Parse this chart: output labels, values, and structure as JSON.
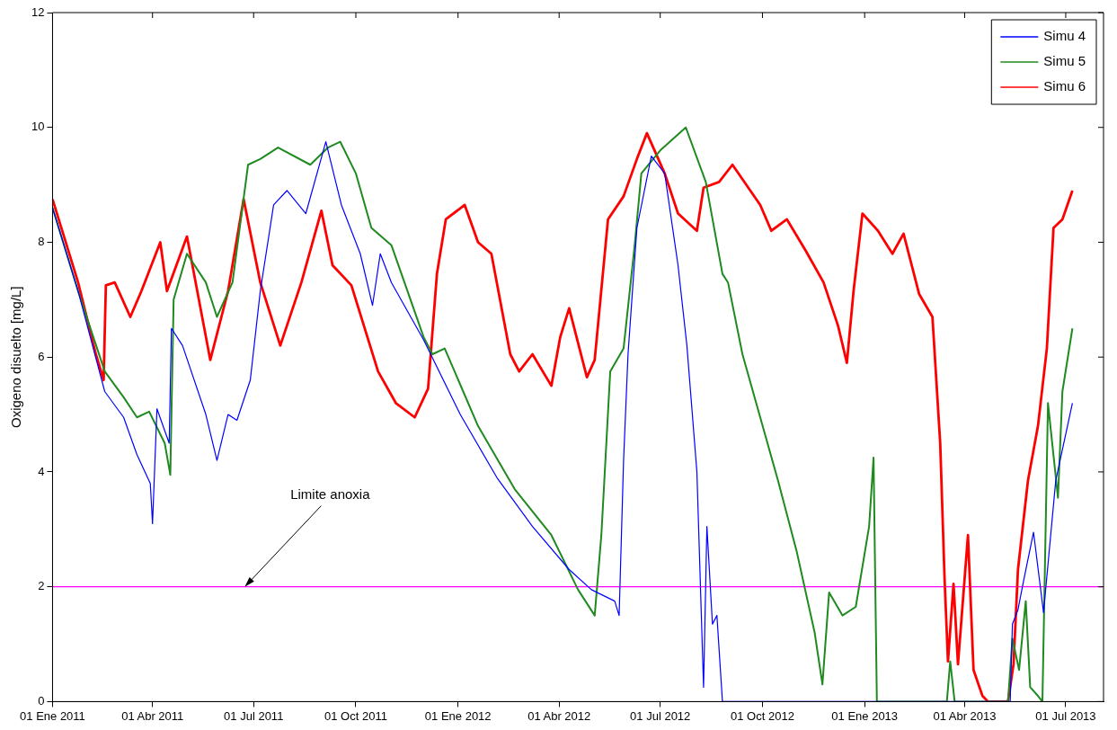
{
  "chart_data": {
    "type": "line",
    "ylabel": "Oxigeno disuelto [mg/L]",
    "legend": "top right",
    "xlim": [
      "2011-01-01",
      "2013-08-04"
    ],
    "xticks": [
      {
        "value": "2011-01-01",
        "label": "01 Ene 2011"
      },
      {
        "value": "2011-04-01",
        "label": "01 Abr 2011"
      },
      {
        "value": "2011-07-01",
        "label": "01 Jul 2011"
      },
      {
        "value": "2011-10-01",
        "label": "01 Oct 2011"
      },
      {
        "value": "2012-01-01",
        "label": "01 Ene 2012"
      },
      {
        "value": "2012-04-01",
        "label": "01 Abr 2012"
      },
      {
        "value": "2012-07-01",
        "label": "01 Jul 2012"
      },
      {
        "value": "2012-10-01",
        "label": "01 Oct 2012"
      },
      {
        "value": "2013-01-01",
        "label": "01 Ene 2013"
      },
      {
        "value": "2013-04-01",
        "label": "01 Abr 2013"
      },
      {
        "value": "2013-07-01",
        "label": "01 Jul 2013"
      }
    ],
    "ylim": [
      0,
      12
    ],
    "yticks": [
      0,
      2,
      4,
      6,
      8,
      10,
      12
    ],
    "ref_lines": [
      {
        "axis": "y",
        "value": 2,
        "color": "#ff00ff"
      }
    ],
    "annotations": [
      {
        "text": "Limite anoxia",
        "x": "2011-06-23",
        "y": 2
      }
    ],
    "series": [
      {
        "name": "Simu 4",
        "color": "#0000ff",
        "x": [
          "2011-01-01",
          "2011-01-24",
          "2011-02-17",
          "2011-03-06",
          "2011-03-18",
          "2011-03-30",
          "2011-04-01",
          "2011-04-05",
          "2011-04-16",
          "2011-04-18",
          "2011-04-28",
          "2011-05-19",
          "2011-05-29",
          "2011-06-08",
          "2011-06-16",
          "2011-06-28",
          "2011-07-07",
          "2011-07-19",
          "2011-07-31",
          "2011-08-17",
          "2011-09-04",
          "2011-09-18",
          "2011-10-05",
          "2011-10-16",
          "2011-10-23",
          "2011-11-02",
          "2011-12-01",
          "2012-01-03",
          "2012-02-05",
          "2012-03-08",
          "2012-04-10",
          "2012-04-30",
          "2012-05-21",
          "2012-05-25",
          "2012-05-29",
          "2012-06-02",
          "2012-06-10",
          "2012-06-23",
          "2012-07-05",
          "2012-07-17",
          "2012-07-25",
          "2012-08-03",
          "2012-08-09",
          "2012-08-12",
          "2012-08-17",
          "2012-08-21",
          "2012-08-26",
          "2013-05-12",
          "2013-05-14",
          "2013-05-19",
          "2013-05-24",
          "2013-06-02",
          "2013-06-11",
          "2013-06-22",
          "2013-07-07"
        ],
        "values": [
          8.6,
          7.15,
          5.4,
          4.95,
          4.3,
          3.8,
          3.1,
          5.1,
          4.5,
          6.5,
          6.2,
          5.0,
          4.2,
          5.0,
          4.9,
          5.6,
          7.15,
          8.65,
          8.9,
          8.5,
          9.75,
          8.65,
          7.8,
          6.9,
          7.8,
          7.3,
          6.3,
          5.0,
          3.9,
          3.05,
          2.3,
          1.95,
          1.75,
          1.5,
          4.2,
          6.05,
          8.25,
          9.5,
          9.2,
          7.6,
          6.2,
          4.0,
          0.25,
          3.05,
          1.35,
          1.5,
          0,
          0,
          1.35,
          1.6,
          2.1,
          2.95,
          1.55,
          3.85,
          5.2
        ]
      },
      {
        "name": "Simu 5",
        "color": "#1f8a1f",
        "x": [
          "2011-01-01",
          "2011-01-24",
          "2011-02-17",
          "2011-03-06",
          "2011-03-18",
          "2011-03-29",
          "2011-04-12",
          "2011-04-17",
          "2011-04-20",
          "2011-05-02",
          "2011-05-19",
          "2011-05-29",
          "2011-06-12",
          "2011-06-26",
          "2011-07-07",
          "2011-07-23",
          "2011-08-21",
          "2011-09-06",
          "2011-09-17",
          "2011-10-01",
          "2011-10-15",
          "2011-11-02",
          "2011-12-01",
          "2011-12-09",
          "2011-12-20",
          "2012-01-19",
          "2012-02-21",
          "2012-03-25",
          "2012-04-18",
          "2012-05-03",
          "2012-05-09",
          "2012-05-17",
          "2012-05-29",
          "2012-06-08",
          "2012-06-14",
          "2012-07-01",
          "2012-07-24",
          "2012-08-11",
          "2012-08-26",
          "2012-08-31",
          "2012-09-13",
          "2012-09-29",
          "2012-10-15",
          "2012-11-01",
          "2012-11-17",
          "2012-11-24",
          "2012-11-27",
          "2012-11-30",
          "2012-12-12",
          "2012-12-24",
          "2013-01-05",
          "2013-01-09",
          "2013-01-12",
          "2013-03-16",
          "2013-03-19",
          "2013-03-23",
          "2013-05-10",
          "2013-05-14",
          "2013-05-20",
          "2013-05-26",
          "2013-05-30",
          "2013-06-06",
          "2013-06-10",
          "2013-06-15",
          "2013-06-24",
          "2013-06-28",
          "2013-07-07"
        ],
        "values": [
          8.6,
          7.15,
          5.75,
          5.3,
          4.95,
          5.05,
          4.5,
          3.95,
          7.0,
          7.8,
          7.3,
          6.7,
          7.3,
          9.35,
          9.45,
          9.65,
          9.35,
          9.65,
          9.75,
          9.2,
          8.25,
          7.95,
          6.35,
          6.05,
          6.15,
          4.8,
          3.7,
          2.9,
          1.95,
          1.5,
          2.9,
          5.75,
          6.15,
          7.95,
          9.2,
          9.6,
          10.0,
          9.05,
          7.45,
          7.3,
          6.05,
          4.95,
          3.85,
          2.6,
          1.2,
          0.3,
          1.1,
          1.9,
          1.5,
          1.65,
          3.05,
          4.25,
          0,
          0,
          0.7,
          0,
          0,
          1.1,
          0.55,
          1.75,
          0.25,
          0.1,
          0,
          5.2,
          3.55,
          5.4,
          6.5
        ]
      },
      {
        "name": "Simu 6",
        "color": "#ff0000",
        "x": [
          "2011-01-01",
          "2011-01-24",
          "2011-02-09",
          "2011-02-16",
          "2011-02-18",
          "2011-02-26",
          "2011-03-12",
          "2011-03-22",
          "2011-04-08",
          "2011-04-14",
          "2011-05-02",
          "2011-05-23",
          "2011-06-08",
          "2011-06-22",
          "2011-07-07",
          "2011-07-25",
          "2011-08-13",
          "2011-08-31",
          "2011-09-10",
          "2011-09-27",
          "2011-10-21",
          "2011-11-06",
          "2011-11-23",
          "2011-12-05",
          "2011-12-13",
          "2011-12-21",
          "2012-01-07",
          "2012-01-19",
          "2012-01-31",
          "2012-02-17",
          "2012-02-25",
          "2012-03-08",
          "2012-03-25",
          "2012-04-02",
          "2012-04-10",
          "2012-04-26",
          "2012-05-03",
          "2012-05-15",
          "2012-05-29",
          "2012-06-10",
          "2012-06-19",
          "2012-07-05",
          "2012-07-17",
          "2012-08-03",
          "2012-08-09",
          "2012-08-23",
          "2012-09-04",
          "2012-09-29",
          "2012-10-09",
          "2012-10-23",
          "2012-11-09",
          "2012-11-25",
          "2012-12-08",
          "2012-12-16",
          "2012-12-22",
          "2012-12-30",
          "2013-01-13",
          "2013-01-26",
          "2013-02-05",
          "2013-02-19",
          "2013-03-03",
          "2013-03-10",
          "2013-03-14",
          "2013-03-17",
          "2013-03-22",
          "2013-03-26",
          "2013-04-04",
          "2013-04-09",
          "2013-04-17",
          "2013-04-22",
          "2013-05-10",
          "2013-05-15",
          "2013-05-19",
          "2013-05-28",
          "2013-06-06",
          "2013-06-14",
          "2013-06-20",
          "2013-06-28",
          "2013-07-07"
        ],
        "values": [
          8.75,
          7.3,
          6.05,
          5.6,
          7.25,
          7.3,
          6.7,
          7.15,
          8.0,
          7.15,
          8.1,
          5.95,
          7.15,
          8.75,
          7.3,
          6.2,
          7.3,
          8.55,
          7.6,
          7.25,
          5.75,
          5.2,
          4.95,
          5.45,
          7.45,
          8.4,
          8.65,
          8.0,
          7.8,
          6.05,
          5.75,
          6.05,
          5.5,
          6.35,
          6.85,
          5.65,
          5.95,
          8.4,
          8.8,
          9.45,
          9.9,
          9.2,
          8.5,
          8.2,
          8.95,
          9.05,
          9.35,
          8.65,
          8.2,
          8.4,
          7.85,
          7.3,
          6.55,
          5.9,
          7.15,
          8.5,
          8.2,
          7.8,
          8.15,
          7.1,
          6.7,
          4.5,
          2.1,
          0.7,
          2.05,
          0.65,
          2.9,
          0.55,
          0.1,
          0,
          0,
          0.65,
          2.3,
          3.85,
          4.8,
          6.15,
          8.25,
          8.4,
          8.9
        ]
      }
    ]
  }
}
